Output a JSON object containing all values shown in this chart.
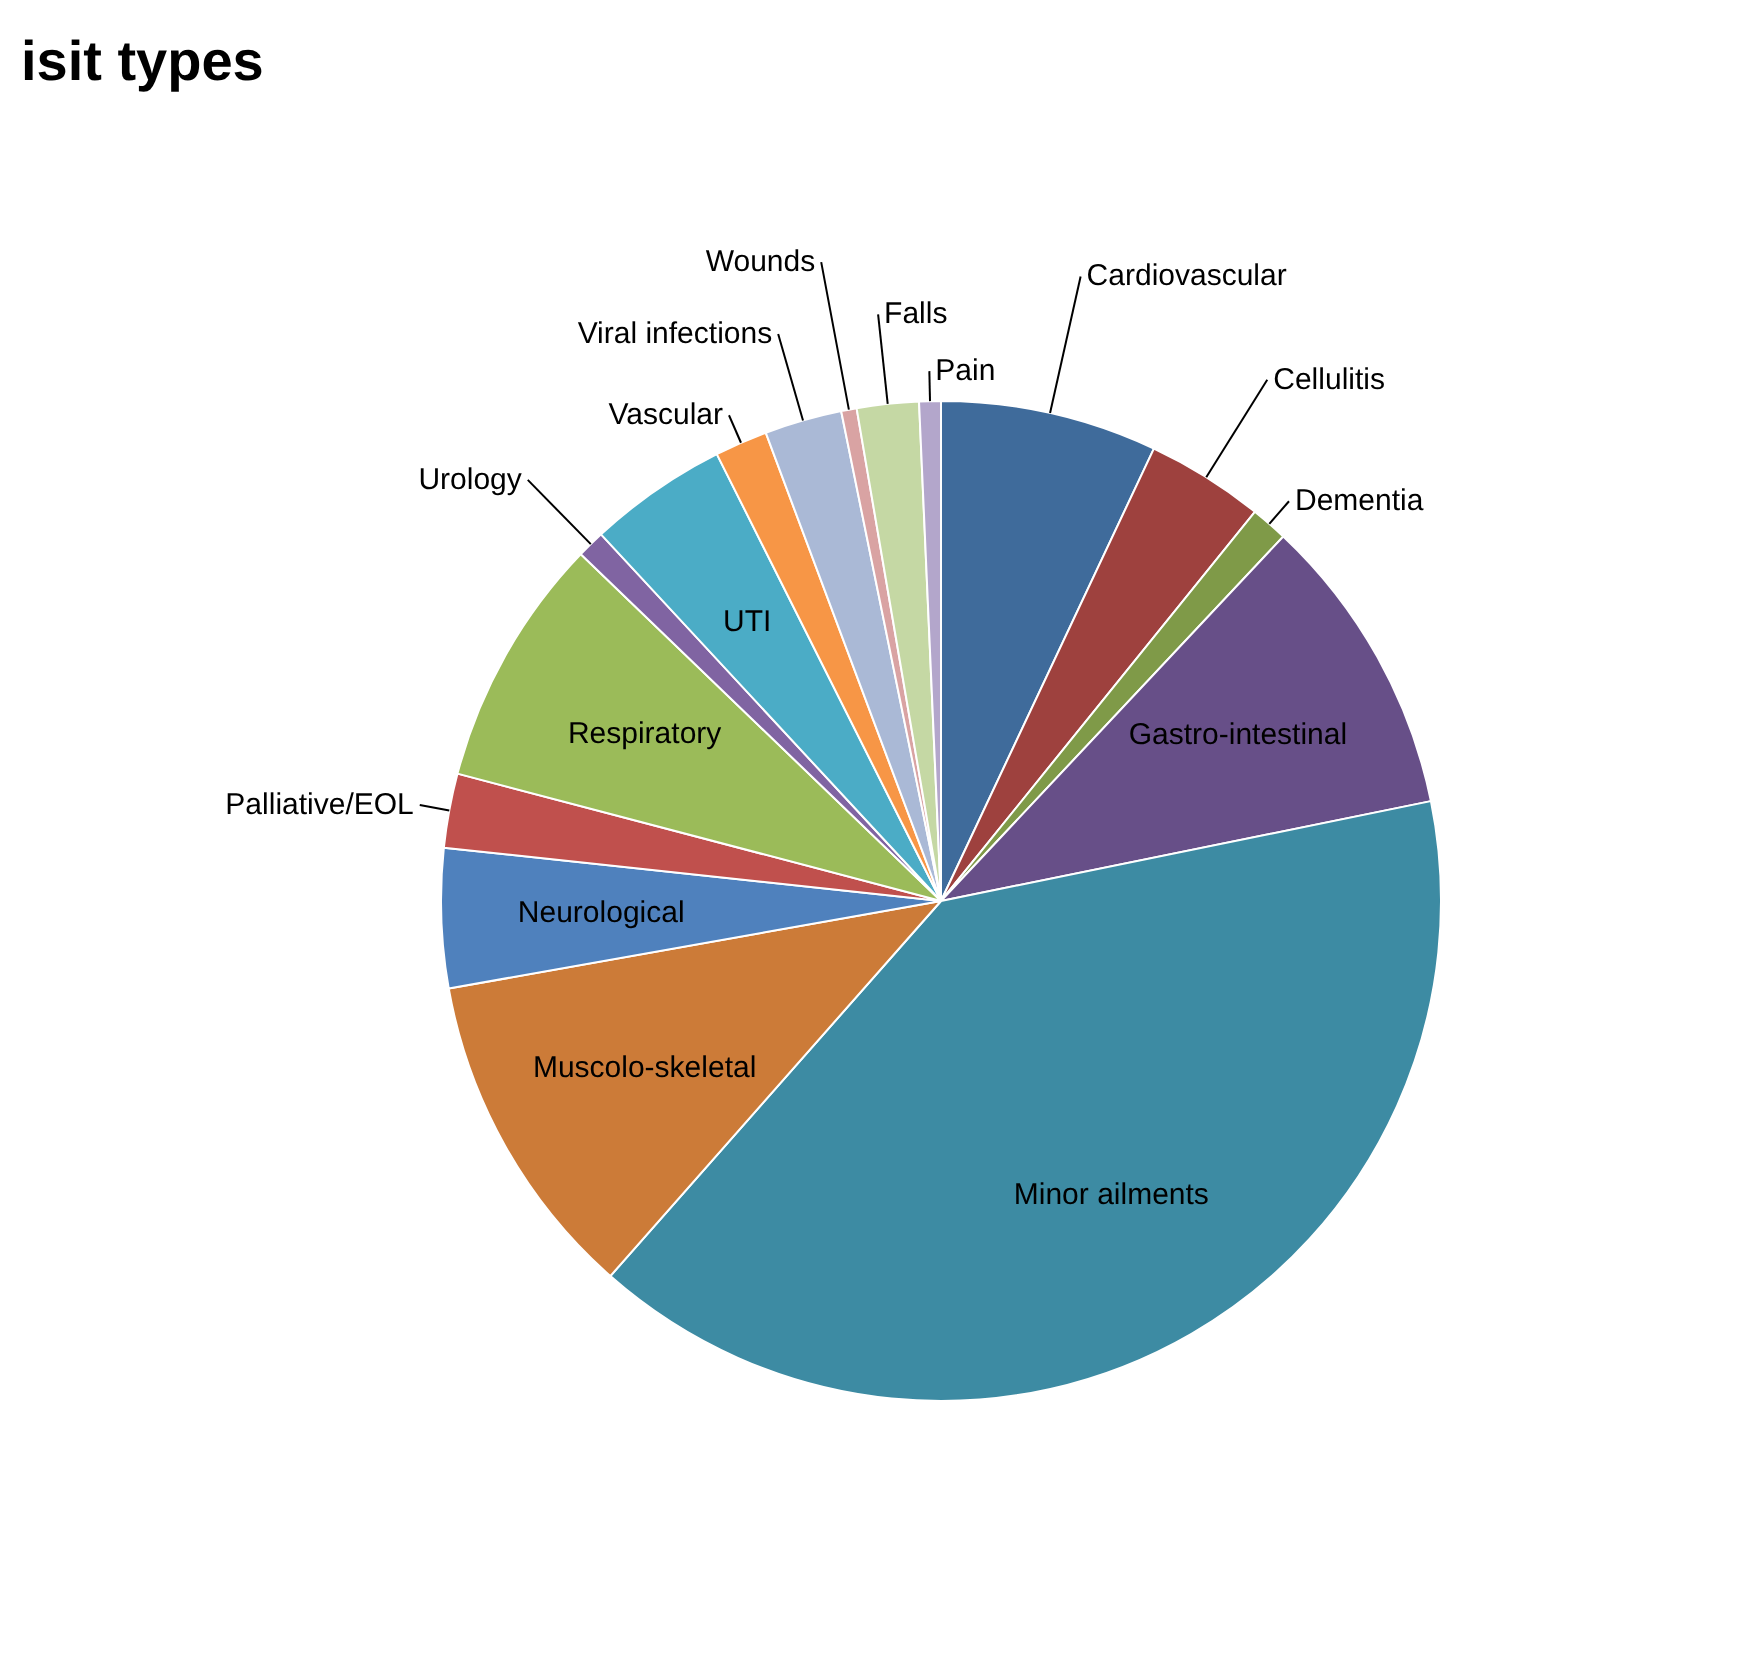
{
  "chart_data": {
    "type": "pie",
    "title": "isit types",
    "categories": [
      "Cardiovascular",
      "Cellulitis",
      "Dementia",
      "Gastro-intestinal",
      "Minor ailments",
      "Muscolo-skeletal",
      "Neurological",
      "Palliative/EOL",
      "Respiratory",
      "Urology",
      "UTI",
      "Vascular",
      "Viral infections",
      "Wounds",
      "Falls",
      "Pain"
    ],
    "values": [
      7.0,
      3.8,
      1.2,
      9.8,
      39.7,
      10.7,
      4.5,
      2.4,
      8.1,
      0.9,
      4.5,
      1.7,
      2.5,
      0.5,
      2.0,
      0.7
    ],
    "colors": [
      "#3f6b9b",
      "#9e413e",
      "#7f9a48",
      "#674f88",
      "#3d8ba3",
      "#cc7b38",
      "#4f81bd",
      "#c0504d",
      "#9bbb59",
      "#8064a2",
      "#4bacc6",
      "#f79646",
      "#aab9d6",
      "#d9a3a3",
      "#c5d8a4",
      "#b3a6cb"
    ]
  }
}
